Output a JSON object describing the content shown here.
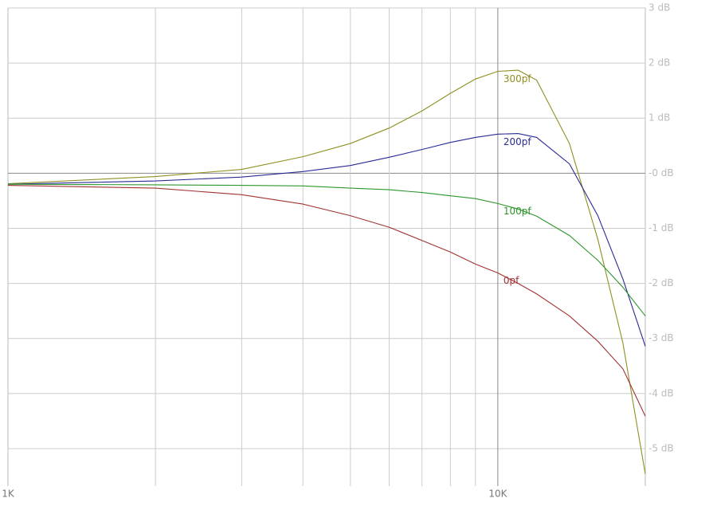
{
  "chart_data": {
    "type": "line",
    "x": [
      1000,
      2000,
      3000,
      4000,
      5000,
      6000,
      7000,
      8000,
      9000,
      10000,
      11000,
      12000,
      14000,
      16000,
      18000,
      20000
    ],
    "xlim": [
      1000,
      20000
    ],
    "x_log_scale": true,
    "xticks": [
      {
        "value": 1000,
        "label": "1K"
      },
      {
        "value": 10000,
        "label": "10K"
      }
    ],
    "x_minor_ticks": [
      2000,
      3000,
      4000,
      5000,
      6000,
      7000,
      8000,
      9000
    ],
    "ylim": [
      -5.68,
      3
    ],
    "yticks": [
      {
        "value": 3,
        "label": "3 dB"
      },
      {
        "value": 2,
        "label": "2 dB"
      },
      {
        "value": 1,
        "label": "1 dB"
      },
      {
        "value": 0,
        "label": "-0 dB"
      },
      {
        "value": -1,
        "label": "-1 dB"
      },
      {
        "value": -2,
        "label": "-2 dB"
      },
      {
        "value": -3,
        "label": "-3 dB"
      },
      {
        "value": -4,
        "label": "-4 dB"
      },
      {
        "value": -5,
        "label": "-5 dB"
      }
    ],
    "grid": true,
    "series": [
      {
        "name": "300pf",
        "color": "#8f8f22",
        "values": [
          -0.19,
          -0.06,
          0.07,
          0.3,
          0.54,
          0.82,
          1.13,
          1.45,
          1.71,
          1.85,
          1.87,
          1.69,
          0.54,
          -1.2,
          -3.08,
          -5.46
        ]
      },
      {
        "name": "200pf",
        "color": "#2a2a96",
        "values": [
          -0.2,
          -0.14,
          -0.07,
          0.03,
          0.14,
          0.29,
          0.43,
          0.56,
          0.65,
          0.71,
          0.72,
          0.65,
          0.17,
          -0.77,
          -1.92,
          -3.14
        ]
      },
      {
        "name": "100pf",
        "color": "#2e962e",
        "values": [
          -0.2,
          -0.21,
          -0.22,
          -0.23,
          -0.27,
          -0.3,
          -0.35,
          -0.41,
          -0.46,
          -0.55,
          -0.65,
          -0.78,
          -1.13,
          -1.58,
          -2.07,
          -2.59
        ]
      },
      {
        "name": "0pf",
        "color": "#a03232",
        "values": [
          -0.22,
          -0.27,
          -0.39,
          -0.56,
          -0.77,
          -0.98,
          -1.22,
          -1.43,
          -1.65,
          -1.81,
          -2.0,
          -2.19,
          -2.59,
          -3.05,
          -3.55,
          -4.41
        ]
      }
    ]
  }
}
